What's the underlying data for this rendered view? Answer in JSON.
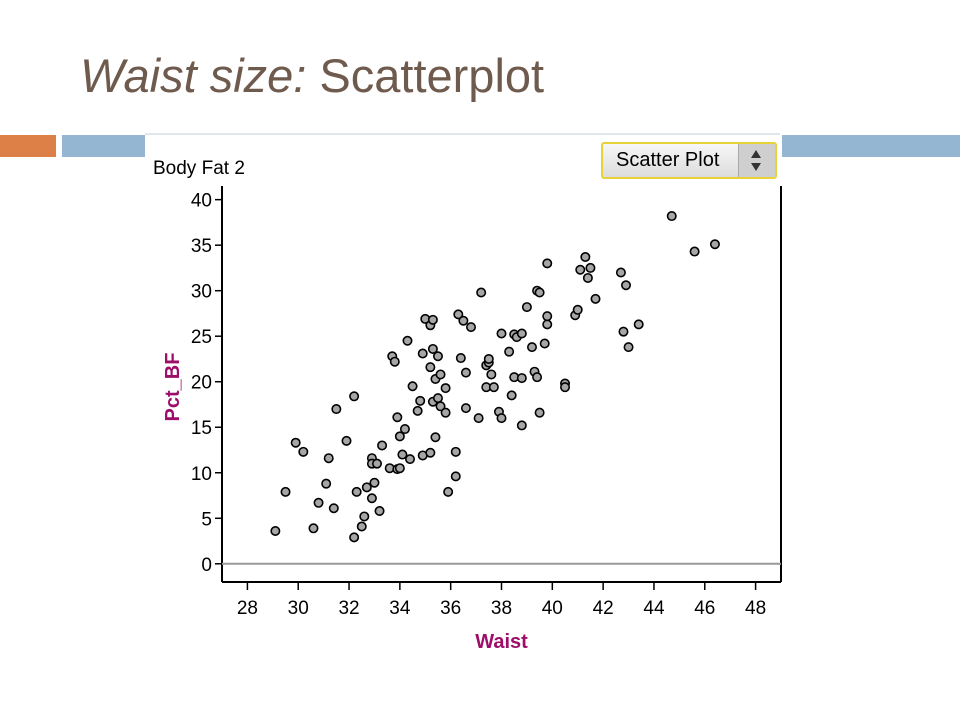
{
  "slide": {
    "title_italic": "Waist size:",
    "title_rest": " Scatterplot"
  },
  "panel": {
    "dataset_name": "Body Fat 2",
    "plot_type": "Scatter Plot"
  },
  "colors": {
    "title": "#6f5a4e",
    "accent_orange": "#dd8047",
    "accent_blue": "#94b6d2",
    "axis_title": "#9c0e6a",
    "point_fill": "#a6a6a6",
    "point_stroke": "#000000"
  },
  "icons": {
    "spinner": "up-down-arrows-icon"
  },
  "chart_data": {
    "type": "scatter",
    "title": "",
    "xlabel": "Waist",
    "ylabel": "Pct_BF",
    "xlim": [
      27,
      49
    ],
    "ylim": [
      -2,
      41.5
    ],
    "xticks": [
      28,
      30,
      32,
      34,
      36,
      38,
      40,
      42,
      44,
      46,
      48
    ],
    "yticks": [
      0,
      5,
      10,
      15,
      20,
      25,
      30,
      35,
      40
    ],
    "grid": false,
    "legend": "none",
    "points": [
      [
        29.1,
        3.6
      ],
      [
        29.5,
        7.9
      ],
      [
        29.9,
        13.3
      ],
      [
        30.2,
        12.3
      ],
      [
        30.6,
        3.9
      ],
      [
        30.8,
        6.7
      ],
      [
        31.1,
        8.8
      ],
      [
        31.2,
        11.6
      ],
      [
        31.4,
        6.1
      ],
      [
        31.5,
        17.0
      ],
      [
        31.9,
        13.5
      ],
      [
        32.2,
        2.9
      ],
      [
        32.2,
        18.4
      ],
      [
        32.3,
        7.9
      ],
      [
        32.5,
        4.1
      ],
      [
        32.6,
        5.2
      ],
      [
        32.7,
        8.4
      ],
      [
        32.9,
        11.6
      ],
      [
        32.9,
        11.0
      ],
      [
        32.9,
        7.2
      ],
      [
        33.0,
        8.9
      ],
      [
        33.1,
        11.0
      ],
      [
        33.2,
        5.8
      ],
      [
        33.3,
        13.0
      ],
      [
        33.6,
        10.5
      ],
      [
        33.7,
        22.8
      ],
      [
        33.8,
        22.2
      ],
      [
        33.9,
        16.1
      ],
      [
        33.9,
        10.4
      ],
      [
        34.0,
        14.0
      ],
      [
        34.0,
        10.5
      ],
      [
        34.1,
        12.0
      ],
      [
        34.2,
        14.8
      ],
      [
        34.3,
        24.5
      ],
      [
        34.4,
        11.5
      ],
      [
        34.5,
        19.5
      ],
      [
        34.7,
        16.8
      ],
      [
        34.8,
        17.9
      ],
      [
        34.9,
        23.1
      ],
      [
        34.9,
        11.9
      ],
      [
        35.0,
        26.9
      ],
      [
        35.2,
        12.2
      ],
      [
        35.2,
        21.6
      ],
      [
        35.2,
        26.2
      ],
      [
        35.3,
        26.8
      ],
      [
        35.3,
        23.6
      ],
      [
        35.3,
        17.8
      ],
      [
        35.4,
        13.9
      ],
      [
        35.4,
        20.3
      ],
      [
        35.5,
        18.2
      ],
      [
        35.5,
        22.8
      ],
      [
        35.6,
        20.8
      ],
      [
        35.6,
        17.3
      ],
      [
        35.8,
        16.6
      ],
      [
        35.8,
        19.3
      ],
      [
        35.9,
        7.9
      ],
      [
        36.2,
        9.6
      ],
      [
        36.2,
        12.3
      ],
      [
        36.3,
        27.4
      ],
      [
        36.4,
        22.6
      ],
      [
        36.5,
        26.7
      ],
      [
        36.6,
        21.0
      ],
      [
        36.6,
        17.1
      ],
      [
        36.8,
        26.0
      ],
      [
        37.1,
        16.0
      ],
      [
        37.2,
        29.8
      ],
      [
        37.4,
        21.8
      ],
      [
        37.4,
        19.4
      ],
      [
        37.5,
        22.1
      ],
      [
        37.5,
        22.5
      ],
      [
        37.6,
        20.8
      ],
      [
        37.7,
        19.4
      ],
      [
        37.9,
        16.7
      ],
      [
        38.0,
        16.0
      ],
      [
        38.0,
        25.3
      ],
      [
        38.3,
        23.3
      ],
      [
        38.4,
        18.5
      ],
      [
        38.5,
        25.2
      ],
      [
        38.5,
        20.5
      ],
      [
        38.6,
        24.9
      ],
      [
        38.8,
        25.3
      ],
      [
        38.8,
        20.4
      ],
      [
        38.8,
        15.2
      ],
      [
        39.0,
        28.2
      ],
      [
        39.2,
        23.8
      ],
      [
        39.3,
        21.1
      ],
      [
        39.4,
        20.5
      ],
      [
        39.4,
        30.0
      ],
      [
        39.5,
        29.8
      ],
      [
        39.5,
        16.6
      ],
      [
        39.7,
        24.2
      ],
      [
        39.8,
        26.3
      ],
      [
        39.8,
        27.2
      ],
      [
        39.8,
        33.0
      ],
      [
        40.5,
        19.8
      ],
      [
        40.5,
        19.4
      ],
      [
        40.9,
        27.3
      ],
      [
        41.0,
        27.9
      ],
      [
        41.1,
        32.3
      ],
      [
        41.3,
        33.7
      ],
      [
        41.4,
        31.4
      ],
      [
        41.5,
        32.5
      ],
      [
        41.7,
        29.1
      ],
      [
        42.7,
        32.0
      ],
      [
        42.8,
        25.5
      ],
      [
        42.9,
        30.6
      ],
      [
        43.0,
        23.8
      ],
      [
        43.4,
        26.3
      ],
      [
        44.7,
        38.2
      ],
      [
        45.6,
        34.3
      ],
      [
        46.4,
        35.1
      ]
    ]
  }
}
